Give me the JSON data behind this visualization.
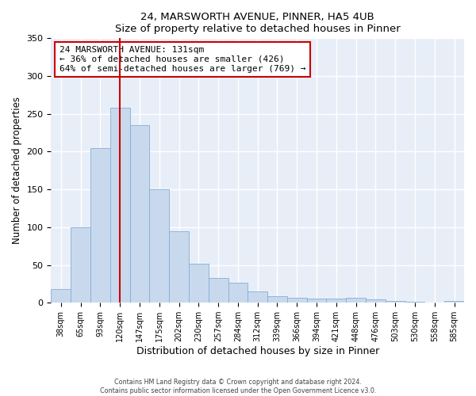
{
  "title": "24, MARSWORTH AVENUE, PINNER, HA5 4UB",
  "subtitle": "Size of property relative to detached houses in Pinner",
  "xlabel": "Distribution of detached houses by size in Pinner",
  "ylabel": "Number of detached properties",
  "bar_labels": [
    "38sqm",
    "65sqm",
    "93sqm",
    "120sqm",
    "147sqm",
    "175sqm",
    "202sqm",
    "230sqm",
    "257sqm",
    "284sqm",
    "312sqm",
    "339sqm",
    "366sqm",
    "394sqm",
    "421sqm",
    "448sqm",
    "476sqm",
    "503sqm",
    "530sqm",
    "558sqm",
    "585sqm"
  ],
  "bar_values": [
    18,
    100,
    205,
    258,
    235,
    150,
    95,
    52,
    33,
    26,
    15,
    9,
    6,
    5,
    5,
    6,
    4,
    2,
    1,
    0,
    2
  ],
  "bar_color": "#c8d9ee",
  "bar_edge_color": "#85aed4",
  "vline_x": 3.5,
  "vline_color": "#cc0000",
  "annotation_text": "24 MARSWORTH AVENUE: 131sqm\n← 36% of detached houses are smaller (426)\n64% of semi-detached houses are larger (769) →",
  "annotation_box_color": "#ffffff",
  "annotation_box_edge_color": "#cc0000",
  "ylim": [
    0,
    350
  ],
  "yticks": [
    0,
    50,
    100,
    150,
    200,
    250,
    300,
    350
  ],
  "footer_line1": "Contains HM Land Registry data © Crown copyright and database right 2024.",
  "footer_line2": "Contains public sector information licensed under the Open Government Licence v3.0.",
  "bg_color": "#ffffff",
  "plot_bg_color": "#e8eef8"
}
